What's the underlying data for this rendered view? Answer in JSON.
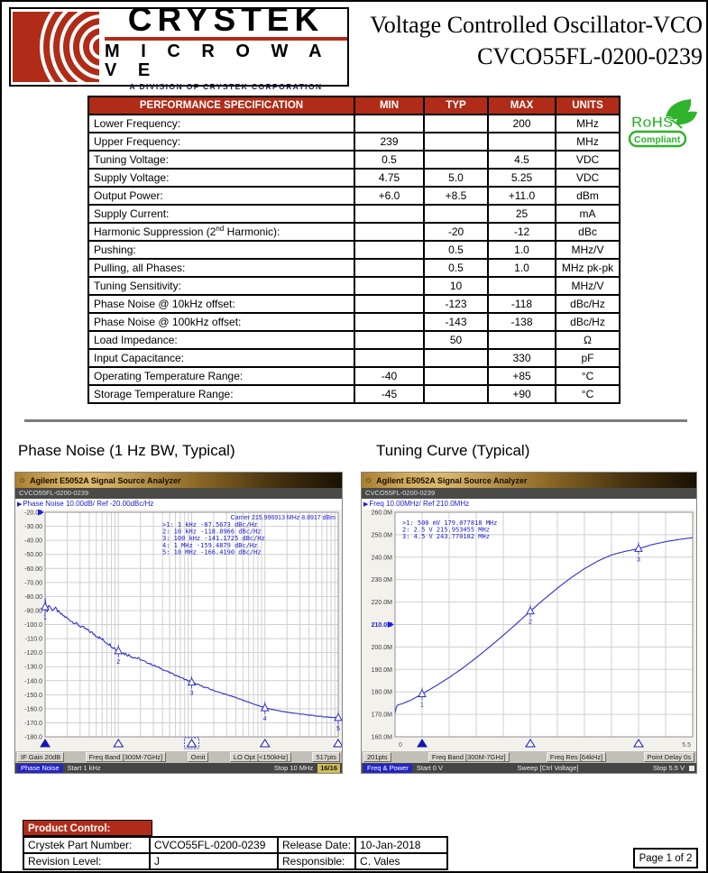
{
  "header": {
    "brand": "CRYSTEK",
    "brand_sub": "M I C R O W A V E",
    "division": "A DIVISION OF CRYSTEK CORPORATION",
    "doc_title_line1": "Voltage Controlled Oscillator-VCO",
    "doc_title_line2": "CVCO55FL-0200-0239"
  },
  "rohs": {
    "line1": "RoHS",
    "line2": "Compliant"
  },
  "spec_table": {
    "headers": [
      "PERFORMANCE SPECIFICATION",
      "MIN",
      "TYP",
      "MAX",
      "UNITS"
    ],
    "rows": [
      [
        "Lower Frequency:",
        "",
        "",
        "200",
        "MHz"
      ],
      [
        "Upper Frequency:",
        "239",
        "",
        "",
        "MHz"
      ],
      [
        "Tuning Voltage:",
        "0.5",
        "",
        "4.5",
        "VDC"
      ],
      [
        "Supply Voltage:",
        "4.75",
        "5.0",
        "5.25",
        "VDC"
      ],
      [
        "Output Power:",
        "+6.0",
        "+8.5",
        "+11.0",
        "dBm"
      ],
      [
        "Supply Current:",
        "",
        "",
        "25",
        "mA"
      ],
      [
        "Harmonic Suppression (2^nd^ Harmonic):",
        "",
        "-20",
        "-12",
        "dBc"
      ],
      [
        "Pushing:",
        "",
        "0.5",
        "1.0",
        "MHz/V"
      ],
      [
        "Pulling, all Phases:",
        "",
        "0.5",
        "1.0",
        "MHz pk-pk"
      ],
      [
        "Tuning Sensitivity:",
        "",
        "10",
        "",
        "MHz/V"
      ],
      [
        "Phase Noise @ 10kHz offset:",
        "",
        "-123",
        "-118",
        "dBc/Hz"
      ],
      [
        "Phase Noise @ 100kHz offset:",
        "",
        "-143",
        "-138",
        "dBc/Hz"
      ],
      [
        "Load Impedance:",
        "",
        "50",
        "",
        "Ω"
      ],
      [
        "Input Capacitance:",
        "",
        "",
        "330",
        "pF"
      ],
      [
        "Operating Temperature Range:",
        "-40",
        "",
        "+85",
        "°C"
      ],
      [
        "Storage Temperature Range:",
        "-45",
        "",
        "+90",
        "°C"
      ]
    ]
  },
  "section_titles": {
    "phase_noise": "Phase Noise (1 Hz BW, Typical)",
    "tuning_curve": "Tuning Curve (Typical)"
  },
  "chart_data": [
    {
      "type": "line",
      "title": "Phase Noise (1 Hz BW, Typical)",
      "window_title": "Agilent E5052A Signal Source Analyzer",
      "device": "CVCO55FL-0200-0239",
      "trace_info": "Phase Noise 10.00dB/ Ref -20.00dBc/Hz",
      "carrier_info": "Carrier 215.996913 MHz      8.8917 dBm",
      "x_axis": {
        "scale": "log",
        "min_label": "1 kHz",
        "max_label": "10 MHz",
        "decades": 4
      },
      "y_axis": {
        "max": -20,
        "min": -180,
        "step": 10,
        "unit": "dBc/Hz",
        "labels": [
          "-20.00",
          "-30.00",
          "-40.00",
          "-50.00",
          "-60.00",
          "-70.00",
          "-80.00",
          "-90.00",
          "-100.0",
          "-110.0",
          "-120.0",
          "-130.0",
          "-140.0",
          "-150.0",
          "-160.0",
          "-170.0",
          "-180.0"
        ],
        "ref_index": 0,
        "ref_blue_label": false
      },
      "markers": [
        {
          "n": "1",
          "x": 0,
          "y": -87.5673
        },
        {
          "n": "2",
          "x": 1,
          "y": -118.8966
        },
        {
          "n": "3",
          "x": 2,
          "y": -141.1725
        },
        {
          "n": "4",
          "x": 3,
          "y": -159.4879
        },
        {
          "n": "5",
          "x": 4,
          "y": -166.419
        }
      ],
      "marker_rows": [
        ">1:  1 kHz     -87.5673 dBc/Hz",
        " 2:  10 kHz   -118.8966 dBc/Hz",
        " 3:  100 kHz  -141.1725 dBc/Hz",
        " 4:  1 MHz    -159.4879 dBc/Hz",
        " 5:  10 MHz   -166.4190 dBc/Hz"
      ],
      "axis_markers": [
        0,
        1,
        2,
        3,
        4
      ],
      "axis_marker_dashed": 2,
      "noise": true,
      "curve": [
        [
          0,
          -80
        ],
        [
          0.02,
          -92
        ],
        [
          0.05,
          -85.5
        ],
        [
          0.09,
          -89.5
        ],
        [
          0.14,
          -88.5
        ],
        [
          0.2,
          -92
        ],
        [
          0.27,
          -94.5
        ],
        [
          0.36,
          -97.5
        ],
        [
          0.46,
          -100.5
        ],
        [
          0.56,
          -103.5
        ],
        [
          0.66,
          -106.5
        ],
        [
          0.76,
          -110
        ],
        [
          0.87,
          -113.8
        ],
        [
          1,
          -118.9
        ],
        [
          1.15,
          -122
        ],
        [
          1.3,
          -125
        ],
        [
          1.5,
          -129.5
        ],
        [
          1.7,
          -134.2
        ],
        [
          2,
          -141.2
        ],
        [
          2.3,
          -147
        ],
        [
          2.6,
          -152
        ],
        [
          3,
          -159.5
        ],
        [
          3.3,
          -162.5
        ],
        [
          3.6,
          -164.5
        ],
        [
          3.8,
          -165.7
        ],
        [
          4,
          -166.4
        ]
      ],
      "footer_buttons": [
        "IF Gain 20dB",
        "Freq Band [300M-7GHz]",
        "Omit",
        "LO Opt [<150kHz]",
        "517pts"
      ],
      "status": {
        "mode": "Phase Noise",
        "start": "Start 1 kHz",
        "stop": "Stop 10 MHz",
        "count": "16/16"
      }
    },
    {
      "type": "line",
      "title": "Tuning Curve (Typical)",
      "window_title": "Agilent E5052A Signal Source Analyzer",
      "device": "CVCO55FL-0200-0239",
      "trace_info": "Freq 10.00MHz/ Ref 210.0MHz",
      "carrier_info": "",
      "x_axis": {
        "scale": "linear",
        "min": 0,
        "max": 5.5,
        "step": 0.5,
        "unit": "V",
        "edge_labels": [
          "0",
          "5.5"
        ]
      },
      "y_axis": {
        "max": 260,
        "min": 160,
        "step": 10,
        "unit": "MHz",
        "labels": [
          "260.0M",
          "250.0M",
          "240.0M",
          "230.0M",
          "220.0M",
          "210.0M",
          "200.0M",
          "190.0M",
          "180.0M",
          "170.0M",
          "160.0M"
        ],
        "ref_index": 5,
        "ref_blue_label": true
      },
      "markers": [
        {
          "n": "1",
          "x": 0.5,
          "y": 179.077818
        },
        {
          "n": "2",
          "x": 2.5,
          "y": 215.953455
        },
        {
          "n": "3",
          "x": 4.5,
          "y": 243.770182
        }
      ],
      "marker_rows": [
        ">1:  500 mV   179.077818 MHz",
        " 2:  2.5 V    215.953455 MHz",
        " 3:  4.5 V    243.770182 MHz"
      ],
      "axis_markers": [
        0.5,
        2.5,
        4.5
      ],
      "noise": false,
      "curve": [
        [
          0,
          170.6
        ],
        [
          0.03,
          174
        ],
        [
          0.15,
          174.9
        ],
        [
          0.3,
          176.4
        ],
        [
          0.5,
          179.1
        ],
        [
          0.75,
          182.6
        ],
        [
          1,
          186.4
        ],
        [
          1.25,
          190.6
        ],
        [
          1.5,
          195.2
        ],
        [
          1.75,
          200.1
        ],
        [
          2,
          205.2
        ],
        [
          2.25,
          210.5
        ],
        [
          2.5,
          215.95
        ],
        [
          2.75,
          221.2
        ],
        [
          3,
          226.2
        ],
        [
          3.25,
          230.8
        ],
        [
          3.5,
          234.9
        ],
        [
          3.75,
          238.3
        ],
        [
          4,
          241
        ],
        [
          4.25,
          242.6
        ],
        [
          4.5,
          243.77
        ],
        [
          4.75,
          245.6
        ],
        [
          5,
          246.9
        ],
        [
          5.25,
          247.9
        ],
        [
          5.5,
          248.7
        ]
      ],
      "footer_buttons": [
        "201pts",
        "Freq Band [300M-7GHz]",
        "Freq Res [64kHz]",
        "Point Delay 0s"
      ],
      "status": {
        "mode": "Freq & Power",
        "start": "Start 0 V",
        "center": "Sweep [Ctrl Voltage]",
        "stop": "Stop 5.5 V"
      }
    }
  ],
  "product_control": {
    "header": "Product Control:",
    "rows": [
      [
        "Crystek Part Number:",
        "CVCO55FL-0200-0239",
        "Release Date:",
        "10-Jan-2018"
      ],
      [
        "Revision Level:",
        "J",
        "Responsible:",
        "C. Vales"
      ]
    ]
  },
  "page_label": "Page 1 of 2",
  "colors": {
    "accent_red": "#b02c18",
    "trace_blue": "#2f2fce",
    "rohs_green": "#2fb32b",
    "marker_blue": "#1515b5"
  }
}
